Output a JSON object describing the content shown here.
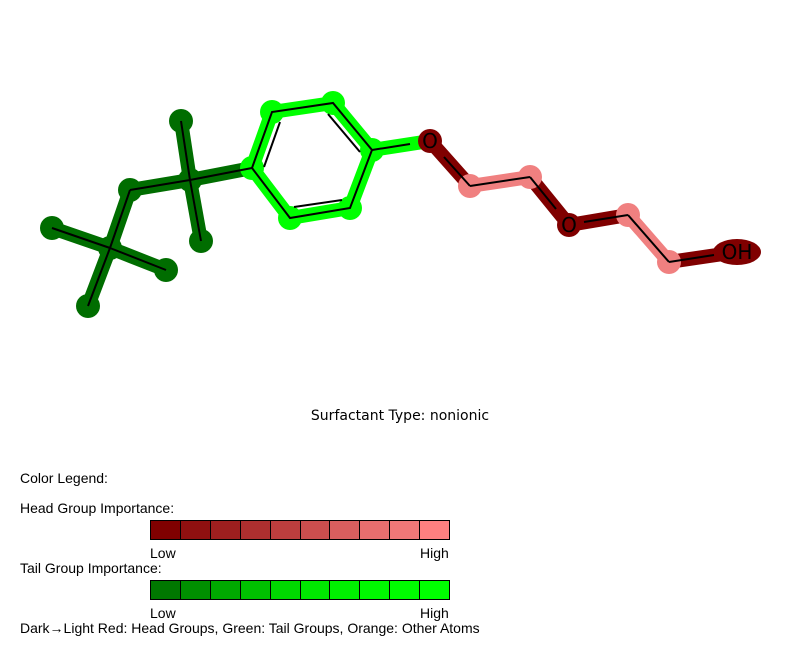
{
  "molecule": {
    "atom_labels": {
      "ether_oxygen_1": "O",
      "ether_oxygen_2": "O",
      "hydroxyl": "OH"
    },
    "colors": {
      "tail_dark": "#006d00",
      "tail_light": "#00ff00",
      "head_dark": "#800000",
      "head_light": "#f08080",
      "bond_line": "#000000"
    }
  },
  "caption": "Surfactant Type: nonionic",
  "legend": {
    "title": "Color Legend:",
    "head": {
      "label": "Head Group Importance:",
      "low": "Low",
      "high": "High",
      "colors": [
        "#800000",
        "#8f1010",
        "#9e1f1f",
        "#ad2f2f",
        "#bc3e3e",
        "#cb4e4e",
        "#d95e5e",
        "#e86e6e",
        "#f07878",
        "#fe8080"
      ]
    },
    "tail": {
      "label": "Tail Group Importance:",
      "low": "Low",
      "high": "High",
      "colors": [
        "#007800",
        "#008f00",
        "#00a800",
        "#00c000",
        "#00d800",
        "#00e800",
        "#00f000",
        "#00f800",
        "#00fc00",
        "#00ff00"
      ]
    },
    "footnote": "Dark→Light Red: Head Groups, Green: Tail Groups, Orange: Other Atoms"
  }
}
